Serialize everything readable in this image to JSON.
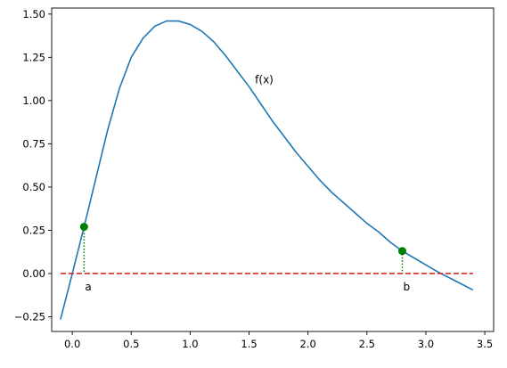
{
  "chart_data": {
    "type": "line",
    "title": "",
    "xlabel": "",
    "ylabel": "",
    "xlim": [
      -0.175,
      3.575
    ],
    "ylim": [
      -0.335,
      1.535
    ],
    "xticks": [
      0.0,
      0.5,
      1.0,
      1.5,
      2.0,
      2.5,
      3.0,
      3.5
    ],
    "xtick_labels": [
      "0.0",
      "0.5",
      "1.0",
      "1.5",
      "2.0",
      "2.5",
      "3.0",
      "3.5"
    ],
    "yticks": [
      -0.25,
      0.0,
      0.25,
      0.5,
      0.75,
      1.0,
      1.25,
      1.5
    ],
    "ytick_labels": [
      "−0.25",
      "0.00",
      "0.25",
      "0.50",
      "0.75",
      "1.00",
      "1.25",
      "1.50"
    ],
    "grid": false,
    "series": [
      {
        "color": "#1f77b4",
        "style": "solid",
        "x": [
          -0.1,
          0.0,
          0.1,
          0.2,
          0.3,
          0.4,
          0.5,
          0.6,
          0.7,
          0.8,
          0.9,
          1.0,
          1.1,
          1.2,
          1.3,
          1.4,
          1.5,
          1.6,
          1.7,
          1.8,
          1.9,
          2.0,
          2.1,
          2.2,
          2.3,
          2.4,
          2.5,
          2.6,
          2.7,
          2.8,
          2.9,
          3.0,
          3.1,
          3.2,
          3.3,
          3.4
        ],
        "y": [
          -0.265,
          0.0,
          0.27,
          0.55,
          0.83,
          1.07,
          1.25,
          1.36,
          1.43,
          1.46,
          1.46,
          1.44,
          1.4,
          1.34,
          1.26,
          1.17,
          1.08,
          0.98,
          0.88,
          0.79,
          0.7,
          0.62,
          0.54,
          0.47,
          0.41,
          0.35,
          0.29,
          0.24,
          0.18,
          0.13,
          0.09,
          0.05,
          0.01,
          -0.025,
          -0.06,
          -0.095
        ]
      }
    ],
    "baseline": {
      "y": 0.0,
      "x_from": -0.1,
      "x_to": 3.4,
      "color": "#d62728",
      "style": "dashed"
    },
    "markers": [
      {
        "x": 0.1,
        "y": 0.27,
        "label": "a",
        "color": "#008000"
      },
      {
        "x": 2.8,
        "y": 0.13,
        "label": "b",
        "color": "#008000"
      }
    ],
    "annotations": [
      {
        "text": "f(x)",
        "x": 1.55,
        "y": 1.12
      }
    ]
  }
}
